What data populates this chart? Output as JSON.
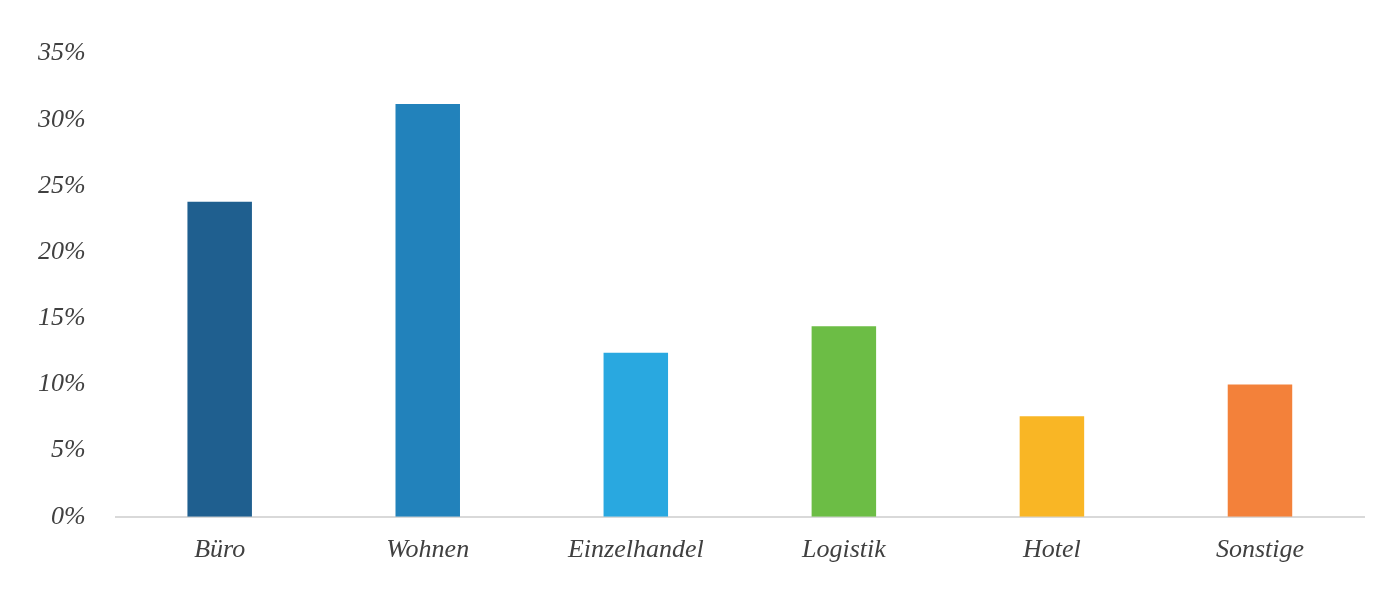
{
  "chart_data": {
    "type": "bar",
    "categories": [
      "Büro",
      "Wohnen",
      "Einzelhandel",
      "Logistik",
      "Hotel",
      "Sonstige"
    ],
    "values": [
      23.8,
      31.2,
      12.4,
      14.4,
      7.6,
      10.0
    ],
    "colors": [
      "#1f5f8f",
      "#2282bb",
      "#29a8e0",
      "#6cbd45",
      "#f9b625",
      "#f3813a"
    ],
    "ylim": [
      0,
      35
    ],
    "yticks": [
      {
        "value": 0,
        "label": "0%"
      },
      {
        "value": 5,
        "label": "5%"
      },
      {
        "value": 10,
        "label": "10%"
      },
      {
        "value": 15,
        "label": "15%"
      },
      {
        "value": 20,
        "label": "20%"
      },
      {
        "value": 25,
        "label": "25%"
      },
      {
        "value": 30,
        "label": "30%"
      },
      {
        "value": 35,
        "label": "35%"
      }
    ],
    "grid": false,
    "legend": false
  }
}
